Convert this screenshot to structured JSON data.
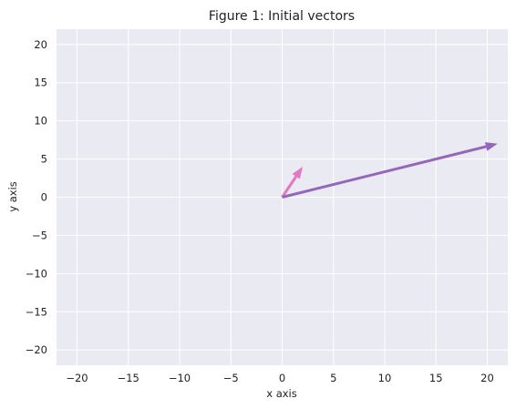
{
  "chart_data": {
    "type": "quiver",
    "title": "Figure 1: Initial vectors",
    "xlabel": "x axis",
    "ylabel": "y axis",
    "xlim": [
      -22,
      22
    ],
    "ylim": [
      -22,
      22
    ],
    "xticks": [
      -20,
      -15,
      -10,
      -5,
      0,
      5,
      10,
      15,
      20
    ],
    "yticks": [
      -20,
      -15,
      -10,
      -5,
      0,
      5,
      10,
      15,
      20
    ],
    "tick_labels_x": [
      "−20",
      "−15",
      "−10",
      "−5",
      "0",
      "5",
      "10",
      "15",
      "20"
    ],
    "tick_labels_y": [
      "−20",
      "−15",
      "−10",
      "−5",
      "0",
      "5",
      "10",
      "15",
      "20"
    ],
    "grid": true,
    "background": "#eaeaf2",
    "vectors": [
      {
        "origin": [
          0,
          0
        ],
        "components": [
          2,
          4
        ],
        "color": "#e377c2"
      },
      {
        "origin": [
          0,
          0
        ],
        "components": [
          21,
          7
        ],
        "color": "#9467bd"
      }
    ]
  }
}
